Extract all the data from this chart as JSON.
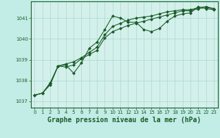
{
  "title": "Graphe pression niveau de la mer (hPa)",
  "background_color": "#c2ece6",
  "plot_bg_color": "#d4f0eb",
  "grid_color": "#a8d8d0",
  "line_color": "#1a5c28",
  "xlim": [
    -0.5,
    23.5
  ],
  "ylim": [
    1036.7,
    1041.8
  ],
  "yticks": [
    1037,
    1038,
    1039,
    1040,
    1041
  ],
  "xticks": [
    0,
    1,
    2,
    3,
    4,
    5,
    6,
    7,
    8,
    9,
    10,
    11,
    12,
    13,
    14,
    15,
    16,
    17,
    18,
    19,
    20,
    21,
    22,
    23
  ],
  "series": [
    {
      "x": [
        0,
        1,
        2,
        3,
        4,
        5,
        6,
        7,
        8,
        9,
        10,
        11,
        12,
        13,
        14,
        15,
        16,
        17,
        18,
        19,
        20,
        21,
        22,
        23
      ],
      "y": [
        1037.3,
        1037.4,
        1037.8,
        1038.7,
        1038.75,
        1038.35,
        1038.85,
        1039.55,
        1039.85,
        1040.45,
        1041.1,
        1041.0,
        1040.8,
        1040.8,
        1040.45,
        1040.35,
        1040.5,
        1040.85,
        1041.1,
        1041.2,
        1041.25,
        1041.55,
        1041.45,
        1041.4
      ]
    },
    {
      "x": [
        0,
        1,
        2,
        3,
        4,
        5,
        6,
        7,
        8,
        9,
        10,
        11,
        12,
        13,
        14,
        15,
        16,
        17,
        18,
        19,
        20,
        21,
        22,
        23
      ],
      "y": [
        1037.3,
        1037.4,
        1037.85,
        1038.7,
        1038.65,
        1038.75,
        1039.05,
        1039.25,
        1039.45,
        1040.05,
        1040.35,
        1040.5,
        1040.65,
        1040.75,
        1040.85,
        1040.95,
        1041.05,
        1041.15,
        1041.25,
        1041.35,
        1041.35,
        1041.45,
        1041.5,
        1041.45
      ]
    },
    {
      "x": [
        0,
        1,
        2,
        3,
        4,
        5,
        6,
        7,
        8,
        9,
        10,
        11,
        12,
        13,
        14,
        15,
        16,
        17,
        18,
        19,
        20,
        21,
        22,
        23
      ],
      "y": [
        1037.3,
        1037.4,
        1037.9,
        1038.7,
        1038.8,
        1038.9,
        1039.1,
        1039.35,
        1039.6,
        1040.2,
        1040.6,
        1040.75,
        1040.9,
        1041.0,
        1041.05,
        1041.1,
        1041.2,
        1041.3,
        1041.35,
        1041.4,
        1041.4,
        1041.5,
        1041.55,
        1041.45
      ]
    }
  ],
  "marker": "D",
  "markersize": 2.0,
  "linewidth": 0.8,
  "title_fontsize": 7.0,
  "tick_fontsize": 5.0
}
